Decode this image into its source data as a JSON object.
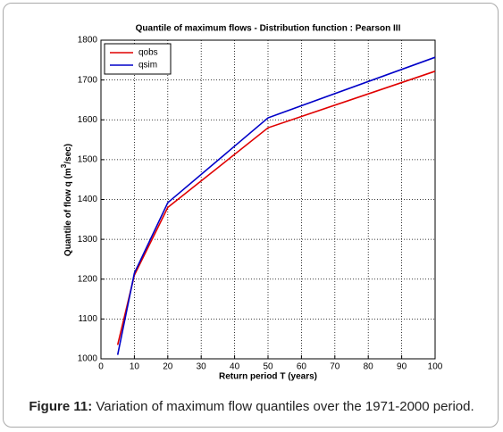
{
  "chart_data": {
    "type": "line",
    "title": "Quantile of maximum flows - Distribution function : Pearson III",
    "xlabel": "Return period T (years)",
    "ylabel": [
      "Quantile of flow q (m",
      "3",
      "/sec)"
    ],
    "x": [
      5,
      10,
      20,
      50,
      100
    ],
    "series": [
      {
        "name": "qobs",
        "color": "#e00000",
        "values": [
          1035,
          1210,
          1380,
          1580,
          1722
        ]
      },
      {
        "name": "qsim",
        "color": "#0000c8",
        "values": [
          1010,
          1215,
          1392,
          1605,
          1757
        ]
      }
    ],
    "xlim": [
      0,
      100
    ],
    "xticks": [
      0,
      10,
      20,
      30,
      40,
      50,
      60,
      70,
      80,
      90,
      100
    ],
    "ylim": [
      1000,
      1800
    ],
    "yticks": [
      1000,
      1100,
      1200,
      1300,
      1400,
      1500,
      1600,
      1700,
      1800
    ],
    "grid": true,
    "legend": "upper-left"
  },
  "caption": {
    "label": "Figure 11:",
    "text": "Variation of maximum flow quantiles over the 1971-2000 period."
  }
}
